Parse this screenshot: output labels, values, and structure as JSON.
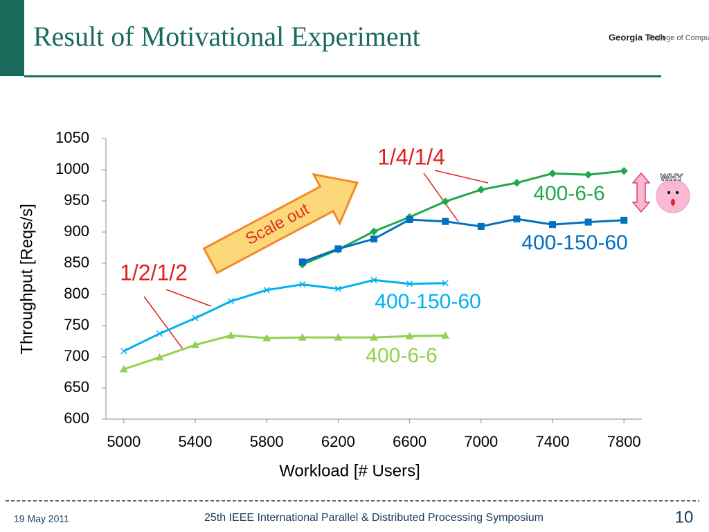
{
  "slide": {
    "title": "Result of Motivational Experiment",
    "logo_left": "Georgia Tech",
    "logo_right": "College of Computing",
    "date": "19 May 2011",
    "footer": "25th IEEE International Parallel & Distributed Processing Symposium",
    "page": "10"
  },
  "chart_data": {
    "type": "line",
    "x_label": "Workload [# Users]",
    "y_label": "Throughput [Reqs/s]",
    "x": [
      5000,
      5200,
      5400,
      5600,
      5800,
      6000,
      6200,
      6400,
      6600,
      6800,
      7000,
      7200,
      7400,
      7600,
      7800
    ],
    "xlim": [
      4900,
      7900
    ],
    "xticks": [
      5000,
      5400,
      5800,
      6200,
      6600,
      7000,
      7400,
      7800
    ],
    "ylim": [
      600,
      1050
    ],
    "yticks": [
      600,
      650,
      700,
      750,
      800,
      850,
      900,
      950,
      1000,
      1050
    ],
    "series": [
      {
        "name": "400-6-6",
        "color": "#92d050",
        "marker": "triangle",
        "values": [
          680,
          699,
          719,
          734,
          730,
          731,
          731,
          731,
          733,
          734,
          null,
          null,
          null,
          null,
          null
        ]
      },
      {
        "name": "400-150-60",
        "color": "#00b0f0",
        "marker": "x",
        "values": [
          709,
          737,
          762,
          789,
          807,
          816,
          809,
          823,
          817,
          818,
          null,
          null,
          null,
          null,
          null
        ]
      },
      {
        "name": "400-6-6",
        "color": "#1fa84a",
        "marker": "diamond",
        "values": [
          null,
          null,
          null,
          null,
          null,
          848,
          872,
          901,
          924,
          949,
          968,
          979,
          994,
          992,
          998
        ]
      },
      {
        "name": "400-150-60",
        "color": "#0070c0",
        "marker": "square",
        "values": [
          null,
          null,
          null,
          null,
          null,
          852,
          873,
          889,
          920,
          917,
          909,
          921,
          912,
          916,
          919
        ]
      }
    ],
    "annotations": [
      "1/2/1/2",
      "1/4/1/4",
      "Scale out",
      "WHY"
    ]
  }
}
